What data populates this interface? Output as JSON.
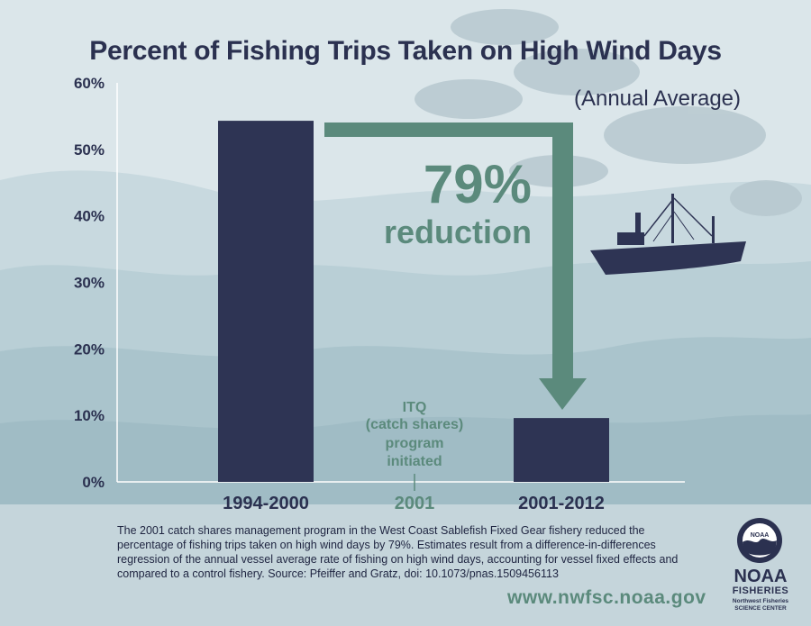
{
  "title": "Percent of Fishing Trips Taken on High Wind Days",
  "subtitle": "(Annual Average)",
  "chart_data": {
    "type": "bar",
    "title": "Percent of Fishing Trips Taken on High Wind Days",
    "subtitle": "(Annual Average)",
    "categories": [
      "1994-2000",
      "2001-2012"
    ],
    "values": [
      54.3,
      9.6
    ],
    "ylim": [
      0,
      60
    ],
    "yticks": [
      "0%",
      "10%",
      "20%",
      "30%",
      "40%",
      "50%",
      "60%"
    ],
    "marker_label": "2001",
    "grid": false,
    "colors": {
      "bars": "#2e3454",
      "annotation": "#5b8a7c"
    }
  },
  "annotation": {
    "reduction_value": "79%",
    "reduction_label": "reduction",
    "itq_lines": [
      "ITQ",
      "(catch shares)",
      "program",
      "initiated"
    ]
  },
  "caption": "The 2001 catch shares management program in the West Coast Sablefish Fixed Gear fishery reduced the percentage of fishing trips taken on high wind days by 79%. Estimates result from a difference-in-differences regression of the annual vessel average rate of fishing on high wind days, accounting for vessel fixed effects and compared to a control fishery. Source: Pfeiffer and Gratz, doi: 10.1073/pnas.1509456113",
  "url": "www.nwfsc.noaa.gov",
  "logo": {
    "icon": "noaa-seal-icon",
    "seal_text": "NOAA",
    "name": "NOAA",
    "division": "FISHERIES",
    "center": "Northwest Fisheries SCIENCE CENTER"
  }
}
